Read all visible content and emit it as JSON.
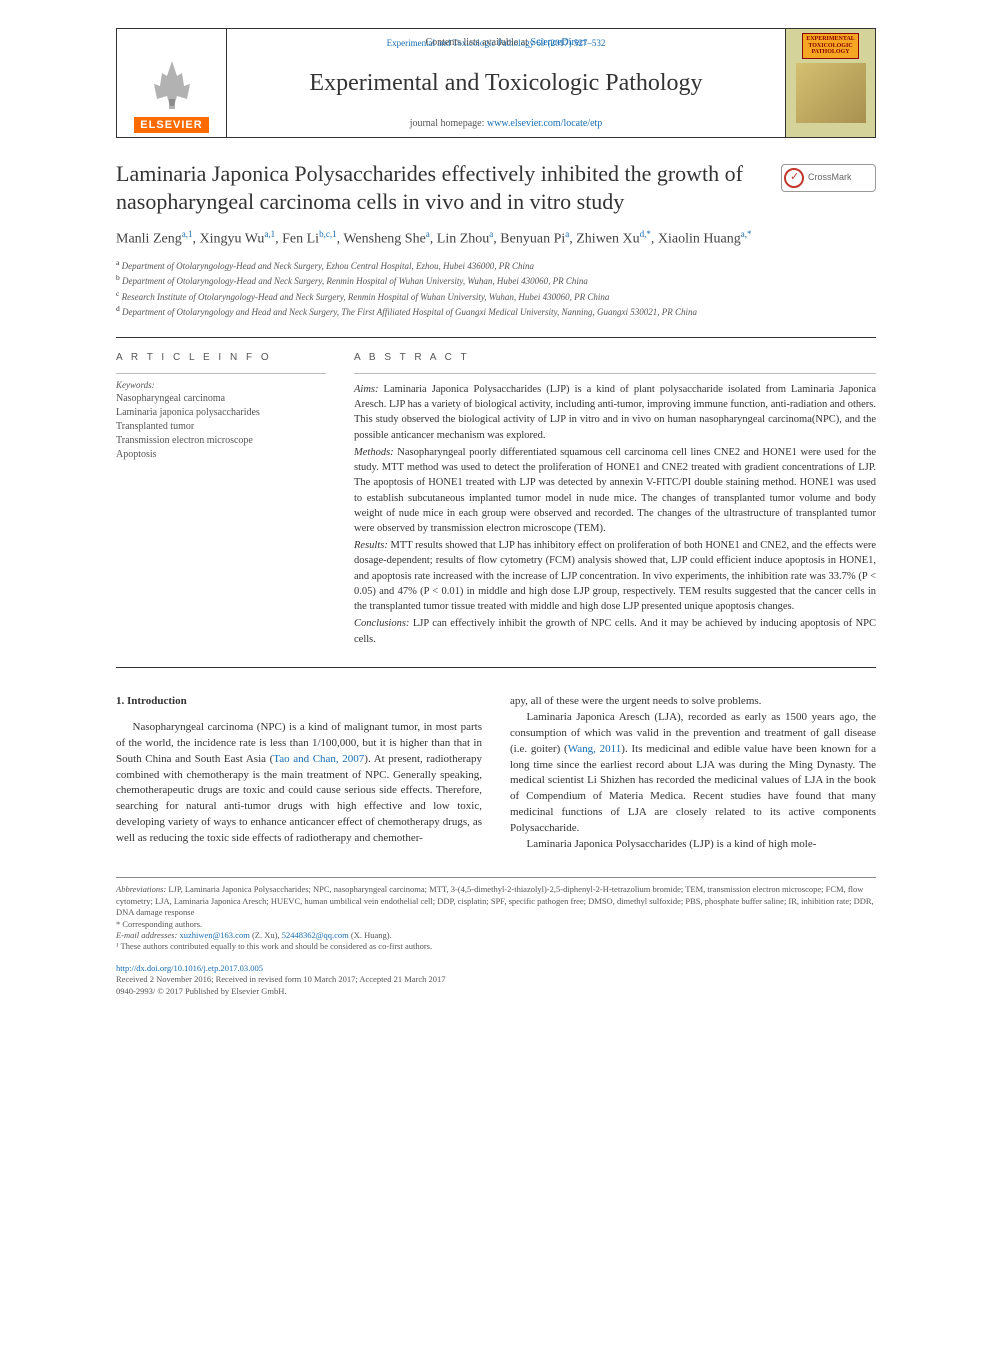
{
  "header": {
    "top_link": "Experimental and Toxicologic Pathology 69 (2017) 527–532",
    "contents_line_pre": "Contents lists available at ",
    "contents_line_link": "ScienceDirect",
    "journal_title": "Experimental and Toxicologic Pathology",
    "homepage_pre": "journal homepage: ",
    "homepage_link": "www.elsevier.com/locate/etp",
    "elsevier": "ELSEVIER",
    "cover_badge_l1": "EXPERIMENTAL",
    "cover_badge_l2": "TOXICOLOGIC",
    "cover_badge_l3": "PATHOLOGY",
    "crossmark": "CrossMark"
  },
  "article": {
    "title": "Laminaria Japonica Polysaccharides effectively inhibited the growth of nasopharyngeal carcinoma cells in vivo and in vitro study",
    "authors_html": "Manli Zeng<sup>a,1</sup>, Xingyu Wu<sup>a,1</sup>, Fen Li<sup>b,c,1</sup>, Wensheng She<sup>a</sup>, Lin Zhou<sup>a</sup>, Benyuan Pi<sup>a</sup>, Zhiwen Xu<sup>d,*</sup>, Xiaolin Huang<sup>a,*</sup>",
    "affiliations": [
      {
        "sup": "a",
        "text": "Department of Otolaryngology-Head and Neck Surgery, Ezhou Central Hospital, Ezhou, Hubei 436000, PR China"
      },
      {
        "sup": "b",
        "text": "Department of Otolaryngology-Head and Neck Surgery, Renmin Hospital of Wuhan University, Wuhan, Hubei 430060, PR China"
      },
      {
        "sup": "c",
        "text": "Research Institute of Otolaryngology-Head and Neck Surgery, Renmin Hospital of Wuhan University, Wuhan, Hubei 430060, PR China"
      },
      {
        "sup": "d",
        "text": "Department of Otolaryngology and Head and Neck Surgery, The First Affiliated Hospital of Guangxi Medical University, Nanning, Guangxi 530021, PR China"
      }
    ]
  },
  "info": {
    "head": "A R T I C L E  I N F O",
    "keywords_label": "Keywords:",
    "keywords": [
      "Nasopharyngeal carcinoma",
      "Laminaria japonica polysaccharides",
      "Transplanted tumor",
      "Transmission electron microscope",
      "Apoptosis"
    ]
  },
  "abstract": {
    "head": "A B S T R A C T",
    "aims": "Aims: Laminaria Japonica Polysaccharides (LJP) is a kind of plant polysaccharide isolated from Laminaria Japonica Aresch. LJP has a variety of biological activity, including anti-tumor, improving immune function, anti-radiation and others. This study observed the biological activity of LJP in vitro and in vivo on human nasopharyngeal carcinoma(NPC), and the possible anticancer mechanism was explored.",
    "methods": "Methods: Nasopharyngeal poorly differentiated squamous cell carcinoma cell lines CNE2 and HONE1 were used for the study. MTT method was used to detect the proliferation of HONE1 and CNE2 treated with gradient concentrations of LJP. The apoptosis of HONE1 treated with LJP was detected by annexin V-FITC/PI double staining method. HONE1 was used to establish subcutaneous implanted tumor model in nude mice. The changes of transplanted tumor volume and body weight of nude mice in each group were observed and recorded. The changes of the ultrastructure of transplanted tumor were observed by transmission electron microscope (TEM).",
    "results": "Results: MTT results showed that LJP has inhibitory effect on proliferation of both HONE1 and CNE2, and the effects were dosage-dependent; results of flow cytometry (FCM) analysis showed that, LJP could efficient induce apoptosis in HONE1, and apoptosis rate increased with the increase of LJP concentration. In vivo experiments, the inhibition rate was 33.7% (P < 0.05) and 47% (P < 0.01) in middle and high dose LJP group, respectively. TEM results suggested that the cancer cells in the transplanted tumor tissue treated with middle and high dose LJP presented unique apoptosis changes.",
    "conclusions": "Conclusions: LJP can effectively inhibit the growth of NPC cells. And it may be achieved by inducing apoptosis of NPC cells."
  },
  "intro": {
    "heading": "1. Introduction",
    "p1_a": "Nasopharyngeal carcinoma (NPC) is a kind of malignant tumor, in most parts of the world, the incidence rate is less than 1/100,000, but it is higher than that in South China and South East Asia (",
    "p1_cite": "Tao and Chan, 2007",
    "p1_b": "). At present, radiotherapy combined with chemotherapy is the main treatment of NPC. Generally speaking, chemotherapeutic drugs are toxic and could cause serious side effects. Therefore, searching for natural anti-tumor drugs with high effective and low toxic, developing variety of ways to enhance anticancer effect of chemotherapy drugs, as well as reducing the toxic side effects of radiotherapy and chemother-",
    "p2_top": "apy, all of these were the urgent needs to solve problems.",
    "p3_a": "Laminaria Japonica Aresch (LJA), recorded as early as 1500 years ago, the consumption of which was valid in the prevention and treatment of gall disease (i.e. goiter) (",
    "p3_cite": "Wang, 2011",
    "p3_b": "). Its medicinal and edible value have been known for a long time since the earliest record about LJA was during the Ming Dynasty. The medical scientist Li Shizhen has recorded the medicinal values of LJA in the book of Compendium of Materia Medica. Recent studies have found that many medicinal functions of LJA are closely related to its active components Polysaccharide.",
    "p4": "Laminaria Japonica Polysaccharides (LJP) is a kind of high mole-"
  },
  "foot": {
    "abbrev_label": "Abbreviations:",
    "abbrev": " LJP, Laminaria Japonica Polysaccharides; NPC, nasopharyngeal carcinoma; MTT, 3-(4,5-dimethyl-2-thiazolyl)-2,5-diphenyl-2-H-tetrazolium bromide; TEM, transmission electron microscope; FCM, flow cytometry; LJA, Laminaria Japonica Aresch; HUEVC, human umbilical vein endothelial cell; DDP, cisplatin; SPF, specific pathogen free; DMSO, dimethyl sulfoxide; PBS, phosphate buffer saline; IR, inhibition rate; DDR, DNA damage response",
    "corresp": "* Corresponding authors.",
    "email_label": "E-mail addresses: ",
    "email1": "xuzhiwen@163.com",
    "email1_who": " (Z. Xu), ",
    "email2": "52448362@qq.com",
    "email2_who": " (X. Huang).",
    "equal": "¹ These authors contributed equally to this work and should be considered as co-first authors.",
    "doi": "http://dx.doi.org/10.1016/j.etp.2017.03.005",
    "received": "Received 2 November 2016; Received in revised form 10 March 2017; Accepted 21 March 2017",
    "issn": "0940-2993/ © 2017 Published by Elsevier GmbH."
  },
  "colors": {
    "link": "#1a6db3",
    "text": "#333333",
    "muted": "#555555",
    "elsevier_orange": "#ff6b00"
  }
}
